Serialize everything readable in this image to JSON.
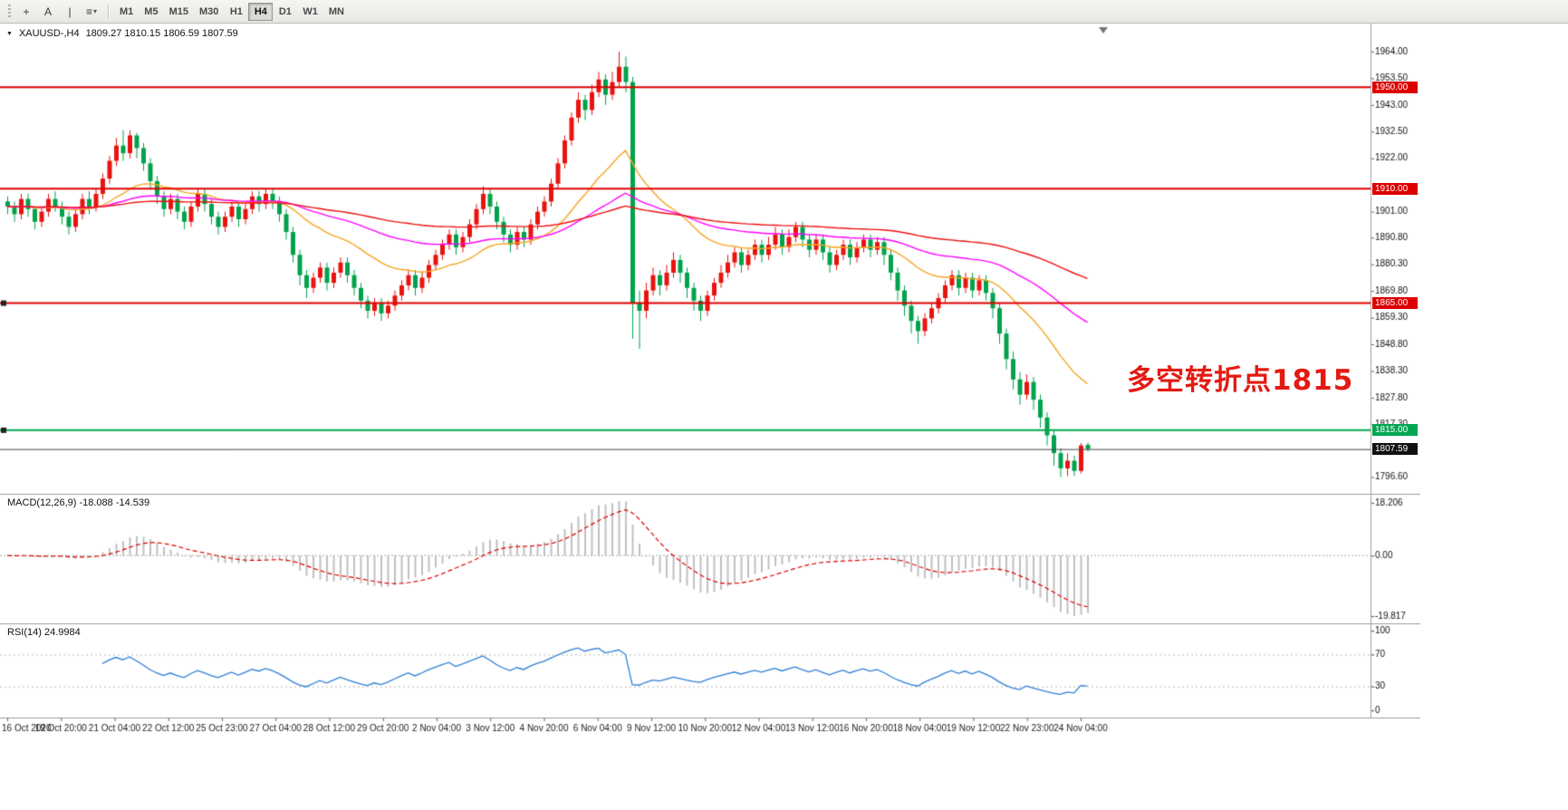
{
  "toolbar": {
    "tools": [
      {
        "name": "crosshair-tool",
        "glyph": "+"
      },
      {
        "name": "text-tool",
        "glyph": "A"
      },
      {
        "name": "vertical-line-tool",
        "glyph": "|"
      },
      {
        "name": "line-studies-dropdown",
        "glyph": "≡"
      }
    ],
    "dropdown_caret": "▾",
    "timeframes": [
      "M1",
      "M5",
      "M15",
      "M30",
      "H1",
      "H4",
      "D1",
      "W1",
      "MN"
    ],
    "active_timeframe": "H4"
  },
  "chart": {
    "dropdown_glyph": "▼",
    "symbol_period": "XAUUSD-,H4",
    "quote": "1809.27 1810.15 1806.59 1807.59"
  },
  "annotation": {
    "text": "多空转折点1815",
    "color": "#e31a12"
  },
  "indicators": {
    "macd": {
      "label": "MACD(12,26,9) -18.088 -14.539",
      "params": {
        "fast": 12,
        "slow": 26,
        "signal": 9
      },
      "values": {
        "macd": -18.088,
        "signal": -14.539
      },
      "axis": [
        "18.206",
        "0.00",
        "-19.817"
      ],
      "histogram_color": "#c0c0c0",
      "signal_color": "#e00000"
    },
    "rsi": {
      "label": "RSI(14) 24.9984",
      "period": 14,
      "value": 24.9984,
      "axis": [
        "100",
        "70",
        "30",
        "0"
      ],
      "levels": [
        70,
        30
      ],
      "line_color": "#2e7fd6"
    }
  },
  "time_axis": {
    "labels": [
      "16 Oct 2020",
      "19 Oct 20:00",
      "21 Oct 04:00",
      "22 Oct 12:00",
      "25 Oct 23:00",
      "27 Oct 04:00",
      "28 Oct 12:00",
      "29 Oct 20:00",
      "2 Nov 04:00",
      "3 Nov 12:00",
      "4 Nov 20:00",
      "6 Nov 04:00",
      "9 Nov 12:00",
      "10 Nov 20:00",
      "12 Nov 04:00",
      "13 Nov 12:00",
      "16 Nov 20:00",
      "18 Nov 04:00",
      "19 Nov 12:00",
      "22 Nov 23:00",
      "24 Nov 04:00"
    ]
  },
  "chart_data": {
    "type": "candlestick",
    "symbol": "XAUUSD-",
    "timeframe": "H4",
    "last_ohlc": {
      "open": 1809.27,
      "high": 1810.15,
      "low": 1806.59,
      "close": 1807.59
    },
    "price_range": [
      1790,
      1975
    ],
    "up_color": "#e8140f",
    "down_color": "#00a24b",
    "price_axis_ticks": [
      "1964.00",
      "1953.50",
      "1943.00",
      "1932.50",
      "1922.00",
      "1901.00",
      "1890.80",
      "1880.30",
      "1869.80",
      "1859.30",
      "1848.80",
      "1838.30",
      "1827.80",
      "1817.30",
      "1796.60"
    ],
    "horizontal_lines": [
      {
        "price": 1950.0,
        "label": "1950.00",
        "color": "#dd0000",
        "handle": false
      },
      {
        "price": 1910.0,
        "label": "1910.00",
        "color": "#dd0000",
        "handle": false
      },
      {
        "price": 1865.0,
        "label": "1865.00",
        "color": "#dd0000",
        "handle": true
      },
      {
        "price": 1815.0,
        "label": "1815.00",
        "color": "#00a651",
        "handle": true
      }
    ],
    "current_price": {
      "value": 1807.59,
      "label": "1807.59",
      "color": "#111111"
    },
    "moving_averages": [
      {
        "name": "ma-fast",
        "period": 24,
        "color": "#f5a623"
      },
      {
        "name": "ma-mid",
        "period": 60,
        "color": "#ff00ff"
      },
      {
        "name": "ma-slow",
        "period": 130,
        "color": "#ee1111"
      }
    ],
    "candles": [
      [
        1905,
        1907,
        1900,
        1903
      ],
      [
        1903,
        1905,
        1897,
        1900
      ],
      [
        1900,
        1908,
        1898,
        1906
      ],
      [
        1906,
        1908,
        1899,
        1902
      ],
      [
        1902,
        1903,
        1894,
        1897
      ],
      [
        1897,
        1903,
        1895,
        1901
      ],
      [
        1901,
        1908,
        1899,
        1906
      ],
      [
        1906,
        1909,
        1901,
        1903
      ],
      [
        1903,
        1905,
        1896,
        1899
      ],
      [
        1899,
        1901,
        1892,
        1895
      ],
      [
        1895,
        1902,
        1893,
        1900
      ],
      [
        1900,
        1908,
        1898,
        1906
      ],
      [
        1906,
        1909,
        1900,
        1903
      ],
      [
        1903,
        1910,
        1901,
        1908
      ],
      [
        1908,
        1916,
        1906,
        1914
      ],
      [
        1914,
        1923,
        1912,
        1921
      ],
      [
        1921,
        1930,
        1919,
        1927
      ],
      [
        1927,
        1933,
        1921,
        1924
      ],
      [
        1924,
        1933,
        1922,
        1931
      ],
      [
        1931,
        1932,
        1922,
        1926
      ],
      [
        1926,
        1928,
        1917,
        1920
      ],
      [
        1920,
        1922,
        1910,
        1913
      ],
      [
        1913,
        1915,
        1904,
        1907
      ],
      [
        1907,
        1909,
        1899,
        1902
      ],
      [
        1902,
        1908,
        1900,
        1906
      ],
      [
        1906,
        1908,
        1898,
        1901
      ],
      [
        1901,
        1903,
        1894,
        1897
      ],
      [
        1897,
        1905,
        1895,
        1903
      ],
      [
        1903,
        1910,
        1901,
        1908
      ],
      [
        1908,
        1910,
        1901,
        1904
      ],
      [
        1904,
        1906,
        1896,
        1899
      ],
      [
        1899,
        1901,
        1892,
        1895
      ],
      [
        1895,
        1901,
        1893,
        1899
      ],
      [
        1899,
        1905,
        1897,
        1903
      ],
      [
        1903,
        1905,
        1895,
        1898
      ],
      [
        1898,
        1904,
        1896,
        1902
      ],
      [
        1902,
        1909,
        1900,
        1907
      ],
      [
        1907,
        1909,
        1901,
        1904
      ],
      [
        1904,
        1910,
        1902,
        1908
      ],
      [
        1908,
        1910,
        1902,
        1905
      ],
      [
        1905,
        1907,
        1897,
        1900
      ],
      [
        1900,
        1902,
        1890,
        1893
      ],
      [
        1893,
        1895,
        1881,
        1884
      ],
      [
        1884,
        1886,
        1872,
        1876
      ],
      [
        1876,
        1878,
        1867,
        1871
      ],
      [
        1871,
        1877,
        1869,
        1875
      ],
      [
        1875,
        1881,
        1873,
        1879
      ],
      [
        1879,
        1881,
        1870,
        1873
      ],
      [
        1873,
        1879,
        1871,
        1877
      ],
      [
        1877,
        1883,
        1875,
        1881
      ],
      [
        1881,
        1883,
        1873,
        1876
      ],
      [
        1876,
        1878,
        1868,
        1871
      ],
      [
        1871,
        1873,
        1863,
        1866
      ],
      [
        1866,
        1868,
        1859,
        1862
      ],
      [
        1862,
        1867,
        1860,
        1865
      ],
      [
        1865,
        1867,
        1858,
        1861
      ],
      [
        1861,
        1866,
        1859,
        1864
      ],
      [
        1864,
        1870,
        1862,
        1868
      ],
      [
        1868,
        1874,
        1866,
        1872
      ],
      [
        1872,
        1878,
        1870,
        1876
      ],
      [
        1876,
        1878,
        1868,
        1871
      ],
      [
        1871,
        1877,
        1869,
        1875
      ],
      [
        1875,
        1882,
        1873,
        1880
      ],
      [
        1880,
        1886,
        1878,
        1884
      ],
      [
        1884,
        1890,
        1882,
        1888
      ],
      [
        1888,
        1894,
        1886,
        1892
      ],
      [
        1892,
        1894,
        1884,
        1887
      ],
      [
        1887,
        1893,
        1885,
        1891
      ],
      [
        1891,
        1898,
        1889,
        1896
      ],
      [
        1896,
        1904,
        1894,
        1902
      ],
      [
        1902,
        1911,
        1900,
        1908
      ],
      [
        1908,
        1910,
        1900,
        1903
      ],
      [
        1903,
        1905,
        1894,
        1897
      ],
      [
        1897,
        1899,
        1889,
        1892
      ],
      [
        1892,
        1894,
        1885,
        1888
      ],
      [
        1888,
        1895,
        1886,
        1893
      ],
      [
        1893,
        1895,
        1887,
        1890
      ],
      [
        1890,
        1898,
        1888,
        1896
      ],
      [
        1896,
        1903,
        1894,
        1901
      ],
      [
        1901,
        1907,
        1899,
        1905
      ],
      [
        1905,
        1914,
        1903,
        1912
      ],
      [
        1912,
        1922,
        1910,
        1920
      ],
      [
        1920,
        1931,
        1918,
        1929
      ],
      [
        1929,
        1940,
        1927,
        1938
      ],
      [
        1938,
        1948,
        1936,
        1945
      ],
      [
        1945,
        1947,
        1937,
        1941
      ],
      [
        1941,
        1951,
        1939,
        1948
      ],
      [
        1948,
        1956,
        1946,
        1953
      ],
      [
        1953,
        1955,
        1943,
        1947
      ],
      [
        1947,
        1956,
        1945,
        1952
      ],
      [
        1952,
        1964,
        1950,
        1958
      ],
      [
        1958,
        1962,
        1948,
        1952
      ],
      [
        1952,
        1954,
        1851,
        1865
      ],
      [
        1865,
        1870,
        1847,
        1862
      ],
      [
        1862,
        1873,
        1859,
        1870
      ],
      [
        1870,
        1879,
        1868,
        1876
      ],
      [
        1876,
        1878,
        1868,
        1872
      ],
      [
        1872,
        1880,
        1870,
        1877
      ],
      [
        1877,
        1885,
        1875,
        1882
      ],
      [
        1882,
        1884,
        1873,
        1877
      ],
      [
        1877,
        1879,
        1867,
        1871
      ],
      [
        1871,
        1873,
        1862,
        1866
      ],
      [
        1866,
        1868,
        1858,
        1862
      ],
      [
        1862,
        1870,
        1860,
        1868
      ],
      [
        1868,
        1875,
        1866,
        1873
      ],
      [
        1873,
        1880,
        1871,
        1877
      ],
      [
        1877,
        1884,
        1875,
        1881
      ],
      [
        1881,
        1887,
        1879,
        1885
      ],
      [
        1885,
        1887,
        1877,
        1880
      ],
      [
        1880,
        1886,
        1878,
        1884
      ],
      [
        1884,
        1890,
        1882,
        1888
      ],
      [
        1888,
        1890,
        1881,
        1884
      ],
      [
        1884,
        1891,
        1882,
        1888
      ],
      [
        1888,
        1895,
        1886,
        1892
      ],
      [
        1892,
        1894,
        1884,
        1887
      ],
      [
        1887,
        1894,
        1885,
        1891
      ],
      [
        1891,
        1897,
        1889,
        1895
      ],
      [
        1895,
        1897,
        1887,
        1890
      ],
      [
        1890,
        1892,
        1883,
        1886
      ],
      [
        1886,
        1892,
        1884,
        1890
      ],
      [
        1890,
        1892,
        1882,
        1885
      ],
      [
        1885,
        1887,
        1877,
        1880
      ],
      [
        1880,
        1886,
        1878,
        1884
      ],
      [
        1884,
        1890,
        1882,
        1888
      ],
      [
        1888,
        1890,
        1880,
        1883
      ],
      [
        1883,
        1889,
        1881,
        1887
      ],
      [
        1887,
        1892,
        1885,
        1890
      ],
      [
        1890,
        1892,
        1883,
        1886
      ],
      [
        1886,
        1891,
        1884,
        1889
      ],
      [
        1889,
        1891,
        1880,
        1884
      ],
      [
        1884,
        1886,
        1874,
        1877
      ],
      [
        1877,
        1879,
        1866,
        1870
      ],
      [
        1870,
        1872,
        1860,
        1864
      ],
      [
        1864,
        1866,
        1853,
        1858
      ],
      [
        1858,
        1860,
        1849,
        1854
      ],
      [
        1854,
        1861,
        1852,
        1859
      ],
      [
        1859,
        1865,
        1857,
        1863
      ],
      [
        1863,
        1869,
        1861,
        1867
      ],
      [
        1867,
        1874,
        1865,
        1872
      ],
      [
        1872,
        1878,
        1870,
        1876
      ],
      [
        1876,
        1878,
        1868,
        1871
      ],
      [
        1871,
        1877,
        1869,
        1875
      ],
      [
        1875,
        1877,
        1867,
        1870
      ],
      [
        1870,
        1876,
        1868,
        1874
      ],
      [
        1874,
        1876,
        1866,
        1869
      ],
      [
        1869,
        1871,
        1859,
        1863
      ],
      [
        1863,
        1865,
        1849,
        1853
      ],
      [
        1853,
        1855,
        1839,
        1843
      ],
      [
        1843,
        1846,
        1831,
        1835
      ],
      [
        1835,
        1838,
        1825,
        1829
      ],
      [
        1829,
        1837,
        1827,
        1834
      ],
      [
        1834,
        1836,
        1823,
        1827
      ],
      [
        1827,
        1829,
        1816,
        1820
      ],
      [
        1820,
        1822,
        1809,
        1813
      ],
      [
        1813,
        1815,
        1801,
        1806
      ],
      [
        1806,
        1808,
        1796.6,
        1800
      ],
      [
        1800,
        1806,
        1797,
        1803
      ],
      [
        1803,
        1805,
        1797,
        1799
      ],
      [
        1799,
        1810,
        1798,
        1809
      ],
      [
        1809.27,
        1810.15,
        1806.59,
        1807.59
      ]
    ]
  }
}
